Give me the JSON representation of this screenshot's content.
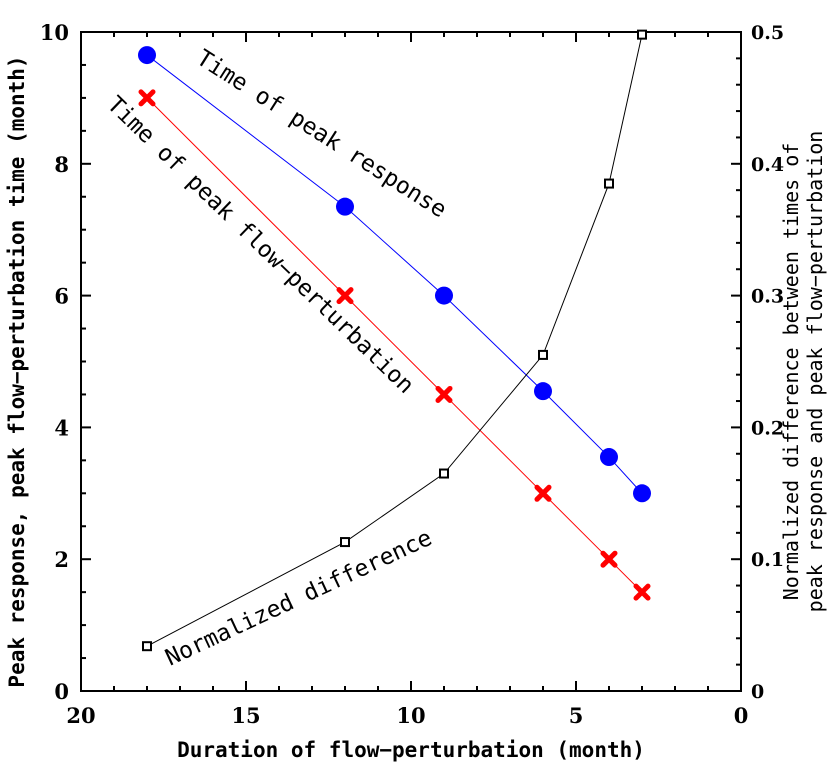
{
  "chart_data": {
    "type": "line",
    "xlabel": "Duration of flow−perturbation (month)",
    "ylabel": "Peak response, peak flow−perturbation time (month)",
    "y2label": [
      "Normalized difference between times of",
      "peak response and peak flow−perturbation"
    ],
    "xlim": [
      20,
      0
    ],
    "ylim": [
      0,
      10
    ],
    "y2lim": [
      0,
      0.5
    ],
    "xticks": [
      "20",
      "15",
      "10",
      "5",
      "0"
    ],
    "yticks": [
      "0",
      "2",
      "4",
      "6",
      "8",
      "10"
    ],
    "y2ticks": [
      "0",
      "0.1",
      "0.2",
      "0.3",
      "0.4",
      "0.5"
    ],
    "grid": false,
    "legend": "none",
    "series": [
      {
        "name": "Time of peak response",
        "axis": "left",
        "marker": "circle",
        "color": "#0000ff",
        "x": [
          18,
          12,
          9,
          6,
          4,
          3
        ],
        "y": [
          9.65,
          7.35,
          6.0,
          4.55,
          3.55,
          3.0
        ]
      },
      {
        "name": "Time of peak flow−perturbation",
        "axis": "left",
        "marker": "x",
        "color": "#ff0000",
        "x": [
          18,
          12,
          9,
          6,
          4,
          3
        ],
        "y": [
          9.0,
          6.0,
          4.5,
          3.0,
          2.0,
          1.5
        ]
      },
      {
        "name": "Normalized difference",
        "axis": "right",
        "marker": "square",
        "color": "#000000",
        "x": [
          18,
          12,
          9,
          6,
          4,
          3
        ],
        "y": [
          0.034,
          0.113,
          0.165,
          0.255,
          0.385,
          0.498
        ]
      }
    ]
  }
}
